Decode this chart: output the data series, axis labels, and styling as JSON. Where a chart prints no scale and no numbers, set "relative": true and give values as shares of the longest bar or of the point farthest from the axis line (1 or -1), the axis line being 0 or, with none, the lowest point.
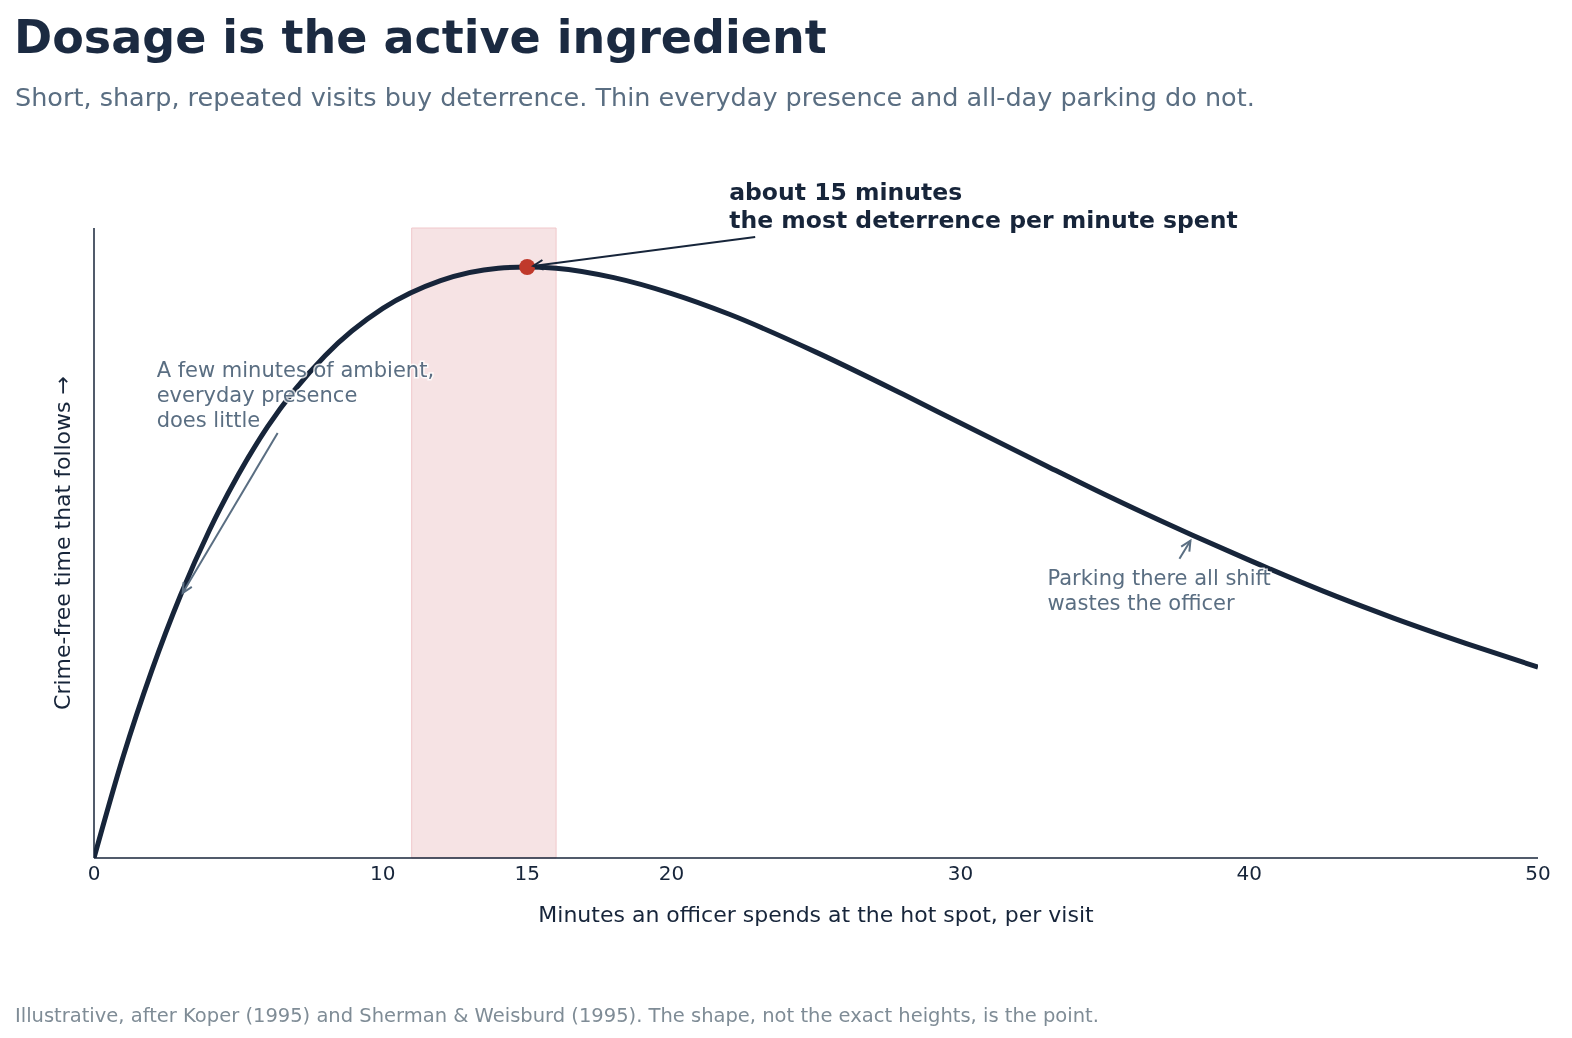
{
  "chart_data": {
    "type": "line",
    "title": "Dosage is the active ingredient",
    "subtitle": "Short, sharp, repeated visits buy deterrence. Thin everyday presence and all-day parking do not.",
    "xlabel": "Minutes an officer spends at the hot spot, per visit",
    "ylabel": "Crime-free time that follows →",
    "relative": true,
    "xlim": [
      0,
      50
    ],
    "xticks": [
      0,
      10,
      15,
      20,
      30,
      40,
      50
    ],
    "tick_labels": "x",
    "grid": false,
    "x": [
      0,
      1,
      2,
      3,
      4,
      5,
      6,
      8,
      10,
      12,
      14,
      15,
      16,
      18,
      20,
      22,
      25,
      28,
      30,
      33,
      35,
      38,
      40,
      43,
      45,
      48,
      50
    ],
    "series": [
      {
        "color": "#17253a",
        "values": [
          0,
          0.17,
          0.317,
          0.445,
          0.555,
          0.649,
          0.729,
          0.85,
          0.93,
          0.977,
          0.998,
          1,
          0.998,
          0.982,
          0.955,
          0.92,
          0.856,
          0.785,
          0.736,
          0.663,
          0.615,
          0.547,
          0.504,
          0.443,
          0.406,
          0.355,
          0.323
        ]
      },
      {
        "type": "scatter",
        "color": "#c0392b",
        "x": [
          15
        ],
        "values": [
          1
        ]
      }
    ],
    "bands": [
      {
        "axis": "x",
        "from": 11,
        "to": 16,
        "color": "#f6e3e4"
      }
    ],
    "annotations": [
      {
        "text": "about 15 minutes\nthe most deterrence per minute spent",
        "x": 15,
        "y": 1
      },
      {
        "text": "A few minutes of ambient,\neveryday presence\ndoes little",
        "x": 3,
        "y": 0.445
      },
      {
        "text": "Parking there all shift\nwastes the officer",
        "x": 38,
        "y": 0.547
      },
      "Illustrative, after Koper (1995) and Sherman & Weisburd (1995). The shape, not the exact heights, is the point."
    ]
  }
}
